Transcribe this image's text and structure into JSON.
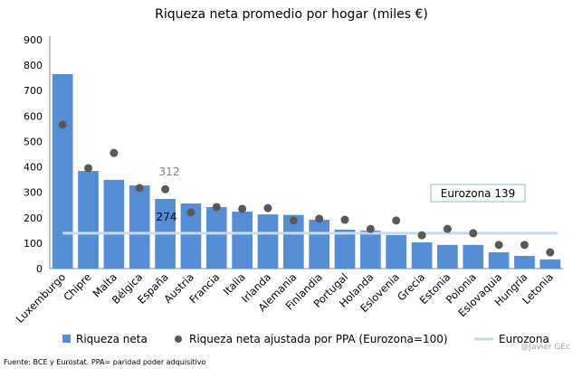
{
  "chart_data": {
    "type": "bar",
    "title": "Riqueza neta promedio por hogar (miles €)",
    "categories": [
      "Luxemburgo",
      "Chipre",
      "Malta",
      "Bélgica",
      "España",
      "Austria",
      "Francia",
      "Italia",
      "Irlanda",
      "Alemania",
      "Finlandia",
      "Portugal",
      "Holanda",
      "Eslovenia",
      "Grecia",
      "Estonia",
      "Polonia",
      "Eslovaquia",
      "Hungría",
      "Letonia"
    ],
    "series": [
      {
        "name": "Riqueza neta",
        "type": "bar",
        "color": "#558ed5",
        "values": [
          765,
          384,
          349,
          327,
          274,
          256,
          242,
          224,
          213,
          211,
          192,
          153,
          149,
          132,
          103,
          93,
          93,
          64,
          50,
          36
        ]
      },
      {
        "name": "Riqueza neta ajustada por PPA (Eurozona=100)",
        "type": "scatter",
        "color": "#595959",
        "values": [
          566,
          395,
          455,
          317,
          312,
          221,
          242,
          235,
          238,
          189,
          196,
          192,
          156,
          189,
          131,
          156,
          139,
          93,
          93,
          64
        ]
      },
      {
        "name": "Eurozona",
        "type": "line",
        "color": "#c6d9f1",
        "value": 139
      }
    ],
    "data_labels": [
      {
        "text": "312",
        "category": "España",
        "series": 1
      },
      {
        "text": "274",
        "category": "España",
        "series": 0
      }
    ],
    "annotation": "Eurozona 139",
    "ylim": [
      0,
      900
    ],
    "yticks": [
      "0",
      "100",
      "200",
      "300",
      "400",
      "500",
      "600",
      "700",
      "800",
      "900"
    ],
    "grid": false,
    "legend": "bottom"
  },
  "footer": {
    "source": "Fuente: BCE y Eurostat. PPA= paridad poder adquisitivo",
    "watermark": "@Javier GEc"
  }
}
